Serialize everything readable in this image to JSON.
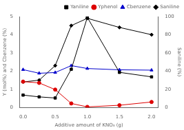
{
  "chart_data": {
    "type": "line",
    "x": [
      0.0,
      0.25,
      0.5,
      0.75,
      1.0,
      1.5,
      2.0
    ],
    "xlabel": "Additive amount of KNO₃ (g)",
    "ylabel": "Y (mol%) and Cbenzene (%)",
    "y2label": "Saniline (%)",
    "xlim": [
      -0.05,
      2.1
    ],
    "xticks": [
      {
        "value": 0.0,
        "label": "0.0"
      },
      {
        "value": 0.5,
        "label": "0.5"
      },
      {
        "value": 1.0,
        "label": "1.0"
      },
      {
        "value": 1.5,
        "label": "1.5"
      },
      {
        "value": 2.0,
        "label": "2.0"
      }
    ],
    "ylim": [
      0,
      5
    ],
    "yticks": [
      0,
      1,
      2,
      3,
      4,
      5
    ],
    "y2lim": [
      0,
      100
    ],
    "y2ticks": [
      0,
      20,
      40,
      60,
      80,
      100
    ],
    "grid": false,
    "legend": "upper right",
    "series": [
      {
        "name": "Yaniline",
        "color": "#000000",
        "marker": "square",
        "values": [
          0.68,
          0.58,
          0.52,
          2.1,
          4.95,
          1.93,
          1.68
        ]
      },
      {
        "name": "Yphenol",
        "color": "#dd0000",
        "marker": "circle",
        "values": [
          1.42,
          1.35,
          0.98,
          0.22,
          0.03,
          0.12,
          0.3
        ]
      },
      {
        "name": "Cbenzene",
        "color": "#0000cc",
        "marker": "triangle",
        "values": [
          2.08,
          1.88,
          1.92,
          2.3,
          2.14,
          2.07,
          2.05
        ]
      },
      {
        "name": "Saniline",
        "color": "#000000",
        "marker": "diamond",
        "axis": "y2",
        "values": [
          28,
          30,
          46,
          90,
          98,
          88,
          80
        ]
      }
    ]
  }
}
